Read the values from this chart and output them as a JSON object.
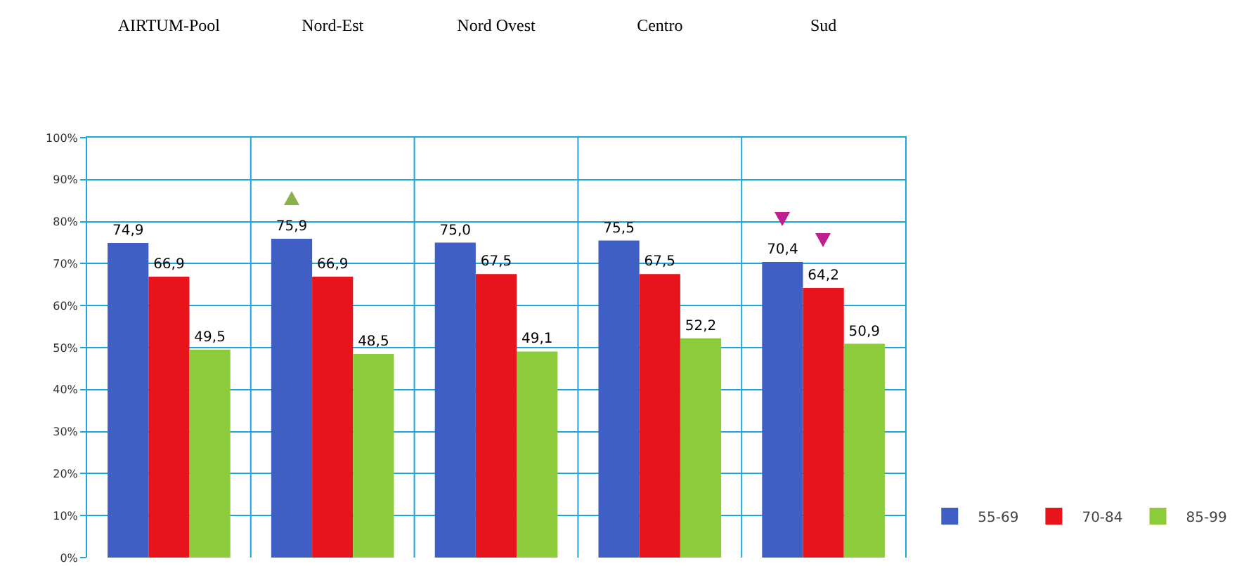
{
  "chart_data": {
    "type": "bar",
    "categories": [
      "AIRTUM-Pool",
      "Nord-Est",
      "Nord Ovest",
      "Centro",
      "Sud"
    ],
    "series": [
      {
        "name": "55-69",
        "color": "#3f5fc4",
        "values": [
          74.9,
          75.9,
          75.0,
          75.5,
          70.4
        ],
        "value_labels": [
          "74,9",
          "75,9",
          "75,0",
          "75,5",
          "70,4"
        ]
      },
      {
        "name": "70-84",
        "color": "#e8141c",
        "values": [
          66.9,
          66.9,
          67.5,
          67.5,
          64.2
        ],
        "value_labels": [
          "66,9",
          "66,9",
          "67,5",
          "67,5",
          "64,2"
        ]
      },
      {
        "name": "85-99",
        "color": "#8ccc3c",
        "values": [
          49.5,
          48.5,
          49.1,
          52.2,
          50.9
        ],
        "value_labels": [
          "49,5",
          "48,5",
          "49,1",
          "52,2",
          "50,9"
        ]
      }
    ],
    "ylim": [
      0,
      100
    ],
    "yticks": [
      {
        "value": 0,
        "label": "0%"
      },
      {
        "value": 10,
        "label": "10%"
      },
      {
        "value": 20,
        "label": "20%"
      },
      {
        "value": 30,
        "label": "30%"
      },
      {
        "value": 40,
        "label": "40%"
      },
      {
        "value": 50,
        "label": "50%"
      },
      {
        "value": 60,
        "label": "60%"
      },
      {
        "value": 70,
        "label": "70%"
      },
      {
        "value": 80,
        "label": "80%"
      },
      {
        "value": 90,
        "label": "90%"
      },
      {
        "value": 100,
        "label": "100%"
      }
    ],
    "grid": true,
    "legend": "right"
  }
}
